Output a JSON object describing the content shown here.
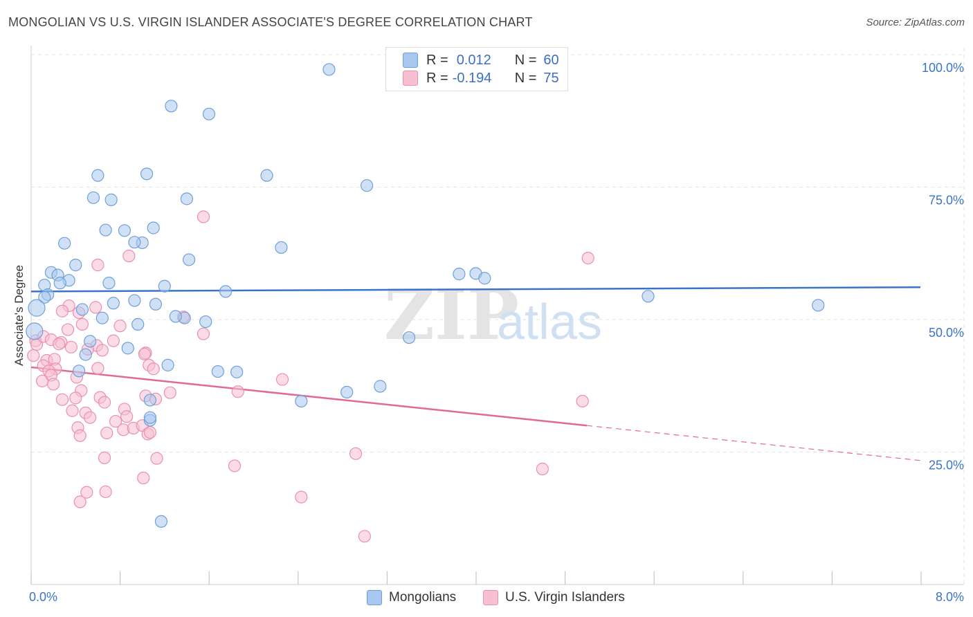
{
  "title": "MONGOLIAN VS U.S. VIRGIN ISLANDER ASSOCIATE'S DEGREE CORRELATION CHART",
  "source": "Source: ZipAtlas.com",
  "watermark": {
    "zip": "ZIP",
    "atlas": "atlas"
  },
  "legend": {
    "mongolians": {
      "r_label": "R =",
      "r_value": "0.012",
      "n_label": "N =",
      "n_value": "60"
    },
    "virgin": {
      "r_label": "R =",
      "r_value": "-0.194",
      "n_label": "N =",
      "n_value": "75"
    }
  },
  "colors": {
    "blue_fill": "#a9c8ef",
    "blue_stroke": "#6f9fd8",
    "blue_line": "#3a74c9",
    "pink_fill": "#f7c0d2",
    "pink_stroke": "#ea8fae",
    "pink_line": "#e2689a",
    "tick_text": "#3a74c9",
    "grid": "#e2e2e2"
  },
  "chart_data": {
    "type": "scatter",
    "title": "MONGOLIAN VS U.S. VIRGIN ISLANDER ASSOCIATE'S DEGREE CORRELATION CHART",
    "xlabel": "",
    "ylabel": "Associate's Degree",
    "xlim": [
      0,
      8
    ],
    "ylim": [
      0,
      100
    ],
    "x_ticks": [
      "0.0%",
      "8.0%"
    ],
    "y_ticks": [
      {
        "value": 25,
        "label": "25.0%"
      },
      {
        "value": 50,
        "label": "50.0%"
      },
      {
        "value": 75,
        "label": "75.0%"
      },
      {
        "value": 100,
        "label": "100.0%"
      }
    ],
    "series": [
      {
        "name": "Mongolians",
        "r": 0.012,
        "n": 60,
        "trend": {
          "x0": 0,
          "y0": 55.3,
          "x1": 8,
          "y1": 56.1
        },
        "points": [
          [
            2.68,
            97.2
          ],
          [
            1.26,
            90.3
          ],
          [
            1.6,
            88.8
          ],
          [
            0.6,
            77.2
          ],
          [
            1.04,
            77.5
          ],
          [
            2.12,
            77.2
          ],
          [
            3.02,
            75.3
          ],
          [
            0.56,
            73.0
          ],
          [
            0.72,
            72.6
          ],
          [
            1.4,
            72.8
          ],
          [
            0.67,
            66.9
          ],
          [
            0.84,
            66.8
          ],
          [
            1.1,
            67.3
          ],
          [
            0.3,
            64.4
          ],
          [
            1.0,
            64.5
          ],
          [
            0.93,
            64.6
          ],
          [
            2.25,
            63.6
          ],
          [
            1.42,
            61.3
          ],
          [
            0.4,
            60.3
          ],
          [
            0.18,
            58.9
          ],
          [
            0.24,
            58.4
          ],
          [
            0.34,
            57.4
          ],
          [
            0.26,
            56.9
          ],
          [
            0.7,
            56.9
          ],
          [
            0.12,
            56.5
          ],
          [
            1.2,
            56.3
          ],
          [
            3.85,
            58.6
          ],
          [
            4.0,
            58.7
          ],
          [
            4.08,
            57.8
          ],
          [
            1.75,
            55.3
          ],
          [
            0.15,
            54.7
          ],
          [
            0.12,
            54.2
          ],
          [
            0.93,
            53.6
          ],
          [
            0.74,
            53.1
          ],
          [
            1.12,
            52.9
          ],
          [
            5.55,
            54.4
          ],
          [
            7.08,
            52.7
          ],
          [
            0.05,
            52.2
          ],
          [
            0.46,
            51.9
          ],
          [
            0.64,
            50.3
          ],
          [
            1.38,
            50.3
          ],
          [
            1.3,
            50.6
          ],
          [
            1.57,
            49.6
          ],
          [
            0.96,
            49.1
          ],
          [
            0.03,
            47.8
          ],
          [
            3.4,
            46.6
          ],
          [
            0.53,
            45.9
          ],
          [
            0.87,
            44.6
          ],
          [
            0.49,
            43.4
          ],
          [
            1.23,
            41.4
          ],
          [
            0.43,
            40.3
          ],
          [
            1.68,
            40.2
          ],
          [
            1.85,
            40.1
          ],
          [
            3.14,
            37.4
          ],
          [
            2.84,
            36.3
          ],
          [
            2.43,
            34.6
          ],
          [
            1.07,
            31.0
          ],
          [
            1.07,
            31.5
          ],
          [
            1.07,
            34.8
          ],
          [
            1.17,
            11.9
          ]
        ]
      },
      {
        "name": "U.S. Virgin Islanders",
        "r": -0.194,
        "n": 75,
        "trend": {
          "x0": 0,
          "y0": 41.0,
          "x1": 5.0,
          "y1": 30.0,
          "dash_x1": 8,
          "dash_y1": 23.4
        },
        "points": [
          [
            1.55,
            69.4
          ],
          [
            0.6,
            60.3
          ],
          [
            0.88,
            62.0
          ],
          [
            5.01,
            61.6
          ],
          [
            0.34,
            52.6
          ],
          [
            0.58,
            52.3
          ],
          [
            0.28,
            51.6
          ],
          [
            0.43,
            51.3
          ],
          [
            1.37,
            50.5
          ],
          [
            0.46,
            49.1
          ],
          [
            0.8,
            48.8
          ],
          [
            0.33,
            48.1
          ],
          [
            1.55,
            47.3
          ],
          [
            0.27,
            45.7
          ],
          [
            0.74,
            46.0
          ],
          [
            0.04,
            46.0
          ],
          [
            0.05,
            45.3
          ],
          [
            0.11,
            46.8
          ],
          [
            0.18,
            46.2
          ],
          [
            0.25,
            45.4
          ],
          [
            0.36,
            44.8
          ],
          [
            0.59,
            45.1
          ],
          [
            0.51,
            44.4
          ],
          [
            0.64,
            44.2
          ],
          [
            0.02,
            43.2
          ],
          [
            1.03,
            43.7
          ],
          [
            1.02,
            43.5
          ],
          [
            0.14,
            42.3
          ],
          [
            0.21,
            42.5
          ],
          [
            0.11,
            41.3
          ],
          [
            0.6,
            40.8
          ],
          [
            1.06,
            41.4
          ],
          [
            1.1,
            40.7
          ],
          [
            0.22,
            40.7
          ],
          [
            0.16,
            40.3
          ],
          [
            0.18,
            39.5
          ],
          [
            0.41,
            39.1
          ],
          [
            0.1,
            38.4
          ],
          [
            0.2,
            37.8
          ],
          [
            2.26,
            38.7
          ],
          [
            0.45,
            36.6
          ],
          [
            0.4,
            35.2
          ],
          [
            1.03,
            35.6
          ],
          [
            1.25,
            36.2
          ],
          [
            1.12,
            35.0
          ],
          [
            0.28,
            34.9
          ],
          [
            0.62,
            35.3
          ],
          [
            0.66,
            34.4
          ],
          [
            1.86,
            36.4
          ],
          [
            4.96,
            34.6
          ],
          [
            0.84,
            33.1
          ],
          [
            0.37,
            32.8
          ],
          [
            0.49,
            32.4
          ],
          [
            0.53,
            31.5
          ],
          [
            0.86,
            31.7
          ],
          [
            0.76,
            30.8
          ],
          [
            0.42,
            29.6
          ],
          [
            0.83,
            29.2
          ],
          [
            0.92,
            29.5
          ],
          [
            1.0,
            30.0
          ],
          [
            0.68,
            28.6
          ],
          [
            0.44,
            28.1
          ],
          [
            1.05,
            28.4
          ],
          [
            1.07,
            28.7
          ],
          [
            0.66,
            23.9
          ],
          [
            1.13,
            23.8
          ],
          [
            2.92,
            24.7
          ],
          [
            1.83,
            22.4
          ],
          [
            4.6,
            21.8
          ],
          [
            1.01,
            20.1
          ],
          [
            0.5,
            17.4
          ],
          [
            0.67,
            17.5
          ],
          [
            2.43,
            16.5
          ],
          [
            0.44,
            15.6
          ],
          [
            3.0,
            9.1
          ]
        ]
      }
    ]
  },
  "bottom_legend": {
    "mongolians": "Mongolians",
    "virgin": "U.S. Virgin Islanders"
  }
}
